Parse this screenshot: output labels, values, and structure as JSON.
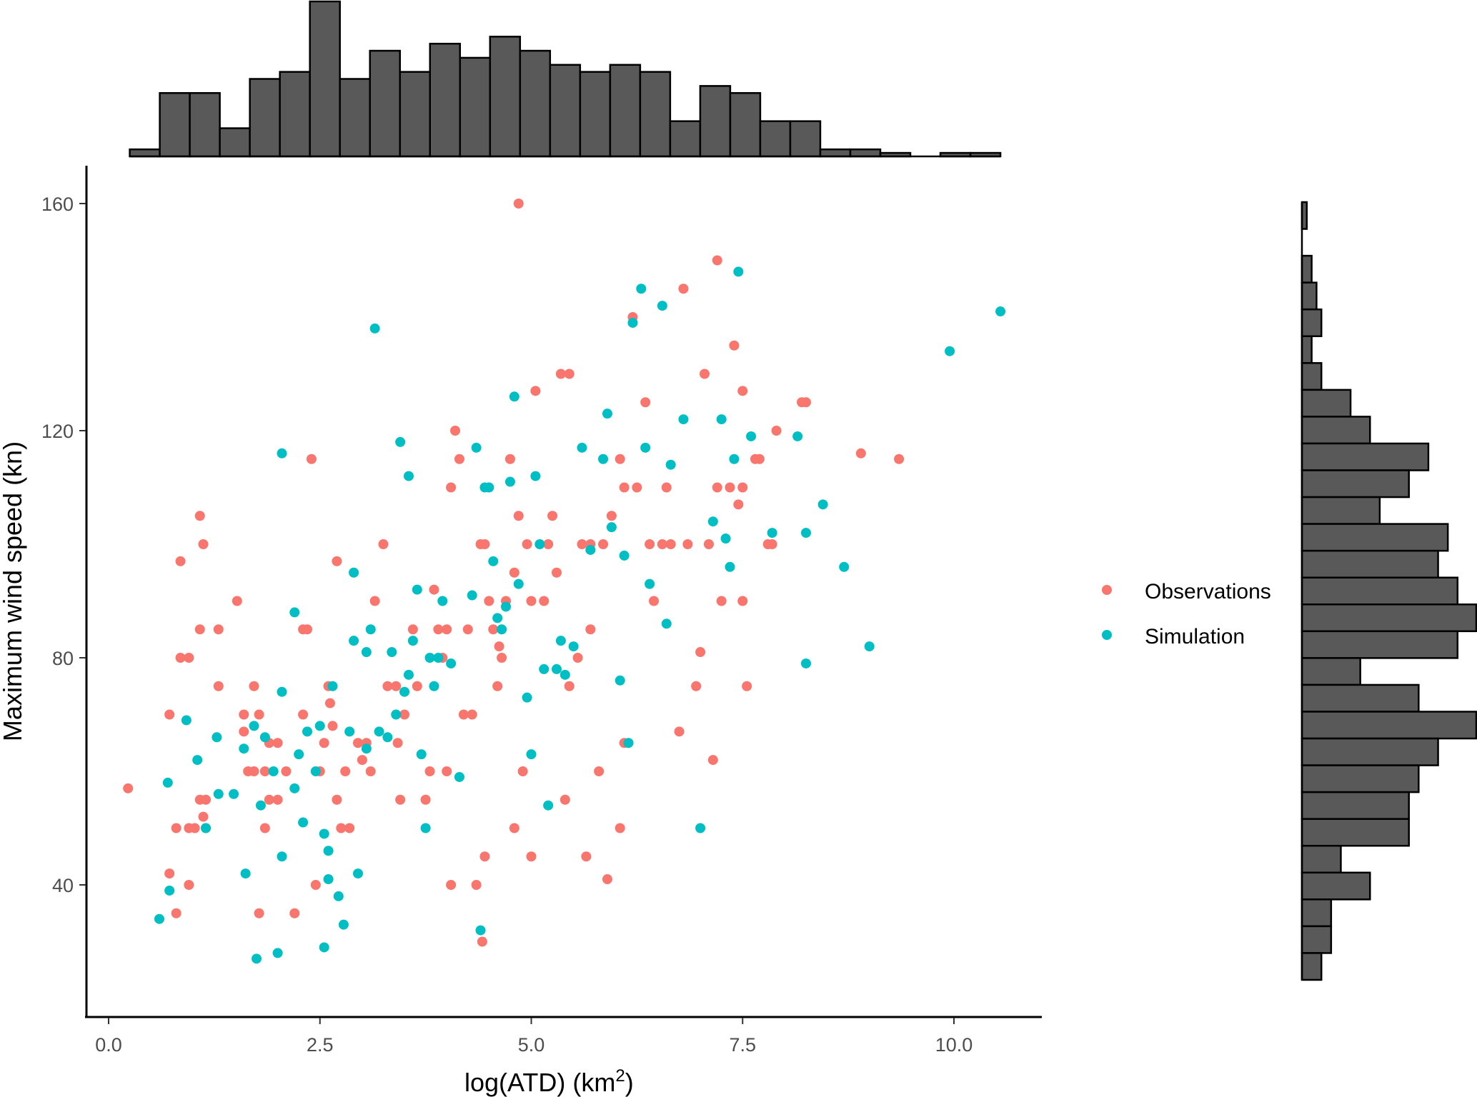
{
  "chart_data": {
    "type": "scatter",
    "title": "",
    "xlabel": "log(ATD) (km",
    "xlabel_superscript": "2",
    "xlabel_close": ")",
    "ylabel": "Maximum wind speed (kn)",
    "xlim": [
      -0.15,
      11.0
    ],
    "ylim": [
      22,
      167
    ],
    "x_ticks": [
      0.0,
      2.5,
      5.0,
      7.5,
      10.0
    ],
    "x_tick_labels": [
      "0.0",
      "2.5",
      "5.0",
      "7.5",
      "10.0"
    ],
    "y_ticks": [
      40,
      80,
      120,
      160
    ],
    "y_tick_labels": [
      "40",
      "80",
      "120",
      "160"
    ],
    "grid": false,
    "legend": {
      "position": "right",
      "entries": [
        {
          "label": "Observations",
          "color": "#F8766D"
        },
        {
          "label": "Simulation",
          "color": "#00BFC4"
        }
      ]
    },
    "series": [
      {
        "name": "Observations",
        "color": "#F8766D",
        "points": [
          [
            0.23,
            57
          ],
          [
            0.72,
            42
          ],
          [
            0.72,
            70
          ],
          [
            0.8,
            35
          ],
          [
            0.8,
            50
          ],
          [
            0.85,
            80
          ],
          [
            0.85,
            97
          ],
          [
            0.95,
            80
          ],
          [
            0.95,
            40
          ],
          [
            0.95,
            50
          ],
          [
            1.02,
            50
          ],
          [
            1.08,
            85
          ],
          [
            1.08,
            55
          ],
          [
            1.08,
            105
          ],
          [
            1.12,
            52
          ],
          [
            1.12,
            100
          ],
          [
            1.15,
            50
          ],
          [
            1.15,
            55
          ],
          [
            1.3,
            85
          ],
          [
            1.3,
            75
          ],
          [
            1.52,
            90
          ],
          [
            1.6,
            67
          ],
          [
            1.6,
            70
          ],
          [
            1.65,
            60
          ],
          [
            1.72,
            60
          ],
          [
            1.72,
            75
          ],
          [
            1.78,
            35
          ],
          [
            1.78,
            70
          ],
          [
            1.85,
            50
          ],
          [
            1.85,
            60
          ],
          [
            1.9,
            55
          ],
          [
            1.9,
            65
          ],
          [
            2.0,
            65
          ],
          [
            2.0,
            55
          ],
          [
            2.1,
            60
          ],
          [
            2.2,
            35
          ],
          [
            2.3,
            70
          ],
          [
            2.3,
            85
          ],
          [
            2.35,
            85
          ],
          [
            2.4,
            115
          ],
          [
            2.45,
            40
          ],
          [
            2.5,
            60
          ],
          [
            2.55,
            65
          ],
          [
            2.6,
            75
          ],
          [
            2.62,
            72
          ],
          [
            2.65,
            68
          ],
          [
            2.7,
            97
          ],
          [
            2.7,
            55
          ],
          [
            2.75,
            50
          ],
          [
            2.8,
            60
          ],
          [
            2.85,
            50
          ],
          [
            2.95,
            65
          ],
          [
            3.0,
            62
          ],
          [
            3.05,
            65
          ],
          [
            3.1,
            60
          ],
          [
            3.15,
            90
          ],
          [
            3.25,
            100
          ],
          [
            3.3,
            75
          ],
          [
            3.4,
            75
          ],
          [
            3.42,
            65
          ],
          [
            3.45,
            55
          ],
          [
            3.5,
            70
          ],
          [
            3.6,
            85
          ],
          [
            3.65,
            75
          ],
          [
            3.75,
            55
          ],
          [
            3.8,
            60
          ],
          [
            3.85,
            92
          ],
          [
            3.9,
            85
          ],
          [
            3.95,
            80
          ],
          [
            4.0,
            60
          ],
          [
            4.0,
            85
          ],
          [
            4.05,
            40
          ],
          [
            4.05,
            110
          ],
          [
            4.1,
            120
          ],
          [
            4.15,
            115
          ],
          [
            4.2,
            70
          ],
          [
            4.25,
            85
          ],
          [
            4.3,
            70
          ],
          [
            4.35,
            40
          ],
          [
            4.4,
            100
          ],
          [
            4.42,
            30
          ],
          [
            4.45,
            100
          ],
          [
            4.45,
            45
          ],
          [
            4.5,
            90
          ],
          [
            4.55,
            85
          ],
          [
            4.6,
            75
          ],
          [
            4.62,
            82
          ],
          [
            4.65,
            80
          ],
          [
            4.7,
            90
          ],
          [
            4.75,
            115
          ],
          [
            4.8,
            50
          ],
          [
            4.8,
            95
          ],
          [
            4.85,
            105
          ],
          [
            4.9,
            60
          ],
          [
            4.95,
            100
          ],
          [
            5.0,
            45
          ],
          [
            5.0,
            90
          ],
          [
            5.05,
            127
          ],
          [
            5.15,
            90
          ],
          [
            5.2,
            100
          ],
          [
            5.25,
            105
          ],
          [
            5.3,
            95
          ],
          [
            5.35,
            130
          ],
          [
            5.45,
            130
          ],
          [
            5.4,
            55
          ],
          [
            5.45,
            75
          ],
          [
            5.55,
            80
          ],
          [
            5.6,
            100
          ],
          [
            5.65,
            45
          ],
          [
            5.7,
            100
          ],
          [
            5.7,
            85
          ],
          [
            5.8,
            60
          ],
          [
            5.85,
            100
          ],
          [
            5.9,
            41
          ],
          [
            5.95,
            105
          ],
          [
            6.05,
            50
          ],
          [
            6.05,
            115
          ],
          [
            6.1,
            110
          ],
          [
            6.1,
            65
          ],
          [
            6.2,
            140
          ],
          [
            6.25,
            110
          ],
          [
            6.35,
            125
          ],
          [
            6.4,
            100
          ],
          [
            6.45,
            90
          ],
          [
            6.55,
            100
          ],
          [
            6.6,
            110
          ],
          [
            6.65,
            100
          ],
          [
            6.75,
            67
          ],
          [
            6.8,
            145
          ],
          [
            6.85,
            100
          ],
          [
            6.95,
            75
          ],
          [
            7.0,
            81
          ],
          [
            7.05,
            130
          ],
          [
            7.1,
            100
          ],
          [
            7.15,
            62
          ],
          [
            7.2,
            110
          ],
          [
            7.2,
            150
          ],
          [
            7.25,
            90
          ],
          [
            7.35,
            110
          ],
          [
            7.4,
            135
          ],
          [
            7.45,
            107
          ],
          [
            7.5,
            127
          ],
          [
            7.5,
            110
          ],
          [
            7.5,
            90
          ],
          [
            7.55,
            75
          ],
          [
            7.65,
            115
          ],
          [
            7.7,
            115
          ],
          [
            7.8,
            100
          ],
          [
            7.85,
            100
          ],
          [
            7.9,
            120
          ],
          [
            8.2,
            125
          ],
          [
            8.25,
            125
          ],
          [
            8.9,
            116
          ],
          [
            9.35,
            115
          ],
          [
            4.85,
            160
          ]
        ]
      },
      {
        "name": "Simulation",
        "color": "#00BFC4",
        "points": [
          [
            0.6,
            34
          ],
          [
            0.7,
            58
          ],
          [
            0.72,
            39
          ],
          [
            0.92,
            69
          ],
          [
            1.05,
            62
          ],
          [
            1.15,
            50
          ],
          [
            1.28,
            66
          ],
          [
            1.3,
            56
          ],
          [
            1.48,
            56
          ],
          [
            1.6,
            64
          ],
          [
            1.62,
            42
          ],
          [
            1.72,
            68
          ],
          [
            1.75,
            27
          ],
          [
            1.8,
            54
          ],
          [
            1.85,
            66
          ],
          [
            1.95,
            60
          ],
          [
            2.0,
            28
          ],
          [
            2.05,
            74
          ],
          [
            2.05,
            45
          ],
          [
            2.05,
            116
          ],
          [
            2.2,
            88
          ],
          [
            2.2,
            57
          ],
          [
            2.25,
            63
          ],
          [
            2.3,
            51
          ],
          [
            2.35,
            67
          ],
          [
            2.45,
            60
          ],
          [
            2.5,
            68
          ],
          [
            2.55,
            49
          ],
          [
            2.55,
            29
          ],
          [
            2.6,
            46
          ],
          [
            2.6,
            41
          ],
          [
            2.65,
            75
          ],
          [
            2.72,
            38
          ],
          [
            2.78,
            33
          ],
          [
            2.85,
            67
          ],
          [
            2.9,
            83
          ],
          [
            2.9,
            95
          ],
          [
            2.95,
            42
          ],
          [
            3.05,
            64
          ],
          [
            3.05,
            81
          ],
          [
            3.1,
            85
          ],
          [
            3.15,
            138
          ],
          [
            3.2,
            67
          ],
          [
            3.3,
            66
          ],
          [
            3.35,
            81
          ],
          [
            3.4,
            70
          ],
          [
            3.45,
            118
          ],
          [
            3.5,
            74
          ],
          [
            3.55,
            112
          ],
          [
            3.55,
            77
          ],
          [
            3.6,
            83
          ],
          [
            3.65,
            92
          ],
          [
            3.7,
            63
          ],
          [
            3.75,
            50
          ],
          [
            3.8,
            80
          ],
          [
            3.85,
            75
          ],
          [
            3.9,
            80
          ],
          [
            3.95,
            90
          ],
          [
            4.05,
            79
          ],
          [
            4.15,
            59
          ],
          [
            4.3,
            91
          ],
          [
            4.35,
            117
          ],
          [
            4.4,
            32
          ],
          [
            4.45,
            110
          ],
          [
            4.5,
            110
          ],
          [
            4.55,
            97
          ],
          [
            4.6,
            87
          ],
          [
            4.65,
            85
          ],
          [
            4.7,
            89
          ],
          [
            4.75,
            111
          ],
          [
            4.8,
            126
          ],
          [
            4.85,
            93
          ],
          [
            4.95,
            73
          ],
          [
            5.0,
            63
          ],
          [
            5.05,
            112
          ],
          [
            5.1,
            100
          ],
          [
            5.15,
            78
          ],
          [
            5.2,
            54
          ],
          [
            5.3,
            78
          ],
          [
            5.35,
            83
          ],
          [
            5.4,
            77
          ],
          [
            5.5,
            82
          ],
          [
            5.6,
            117
          ],
          [
            5.7,
            99
          ],
          [
            5.85,
            115
          ],
          [
            5.9,
            123
          ],
          [
            5.95,
            103
          ],
          [
            6.05,
            76
          ],
          [
            6.1,
            98
          ],
          [
            6.15,
            65
          ],
          [
            6.2,
            139
          ],
          [
            6.3,
            145
          ],
          [
            6.35,
            117
          ],
          [
            6.4,
            93
          ],
          [
            6.55,
            142
          ],
          [
            6.6,
            86
          ],
          [
            6.65,
            114
          ],
          [
            6.8,
            122
          ],
          [
            7.0,
            50
          ],
          [
            7.15,
            104
          ],
          [
            7.25,
            122
          ],
          [
            7.3,
            101
          ],
          [
            7.35,
            96
          ],
          [
            7.4,
            115
          ],
          [
            7.45,
            148
          ],
          [
            7.6,
            119
          ],
          [
            7.85,
            102
          ],
          [
            8.15,
            119
          ],
          [
            8.25,
            102
          ],
          [
            8.25,
            79
          ],
          [
            8.45,
            107
          ],
          [
            8.7,
            96
          ],
          [
            9.0,
            82
          ],
          [
            9.95,
            134
          ],
          [
            10.55,
            141
          ]
        ]
      }
    ],
    "marginal_x_histogram": {
      "type": "bar",
      "bin_range": [
        0.25,
        10.55
      ],
      "counts": [
        1,
        9,
        9,
        4,
        11,
        12,
        22,
        11,
        15,
        12,
        16,
        14,
        17,
        15,
        13,
        12,
        13,
        12,
        5,
        10,
        9,
        5,
        5,
        1,
        1,
        0.5,
        0,
        0.5,
        0.5
      ]
    },
    "marginal_y_histogram": {
      "type": "bar",
      "bin_range": [
        22,
        162
      ],
      "counts_top_to_bottom": [
        0.5,
        0,
        1,
        1.5,
        2,
        1,
        2,
        5,
        7,
        13,
        11,
        8,
        15,
        14,
        16,
        18,
        16,
        6,
        12,
        18,
        14,
        12,
        11,
        11,
        4,
        7,
        3,
        3,
        2
      ]
    }
  }
}
